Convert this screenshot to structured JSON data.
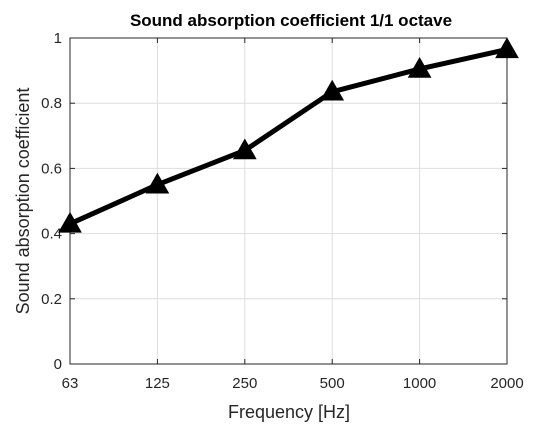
{
  "chart_data": {
    "type": "line",
    "title": "Sound absorption coefficient 1/1 octave",
    "xlabel": "Frequency [Hz]",
    "ylabel": "Sound absorption coefficient",
    "categories": [
      "63",
      "125",
      "250",
      "500",
      "1000",
      "2000"
    ],
    "series": [
      {
        "values": [
          0.43,
          0.55,
          0.655,
          0.835,
          0.905,
          0.965
        ],
        "marker": "triangle",
        "color": "#000000"
      }
    ],
    "ylim": [
      0,
      1
    ],
    "yticks": [
      0,
      0.2,
      0.4,
      0.6,
      0.8,
      1
    ],
    "ytick_labels": [
      "0",
      "0.2",
      "0.4",
      "0.6",
      "0.8",
      "1"
    ],
    "grid": true,
    "legend": "none"
  }
}
